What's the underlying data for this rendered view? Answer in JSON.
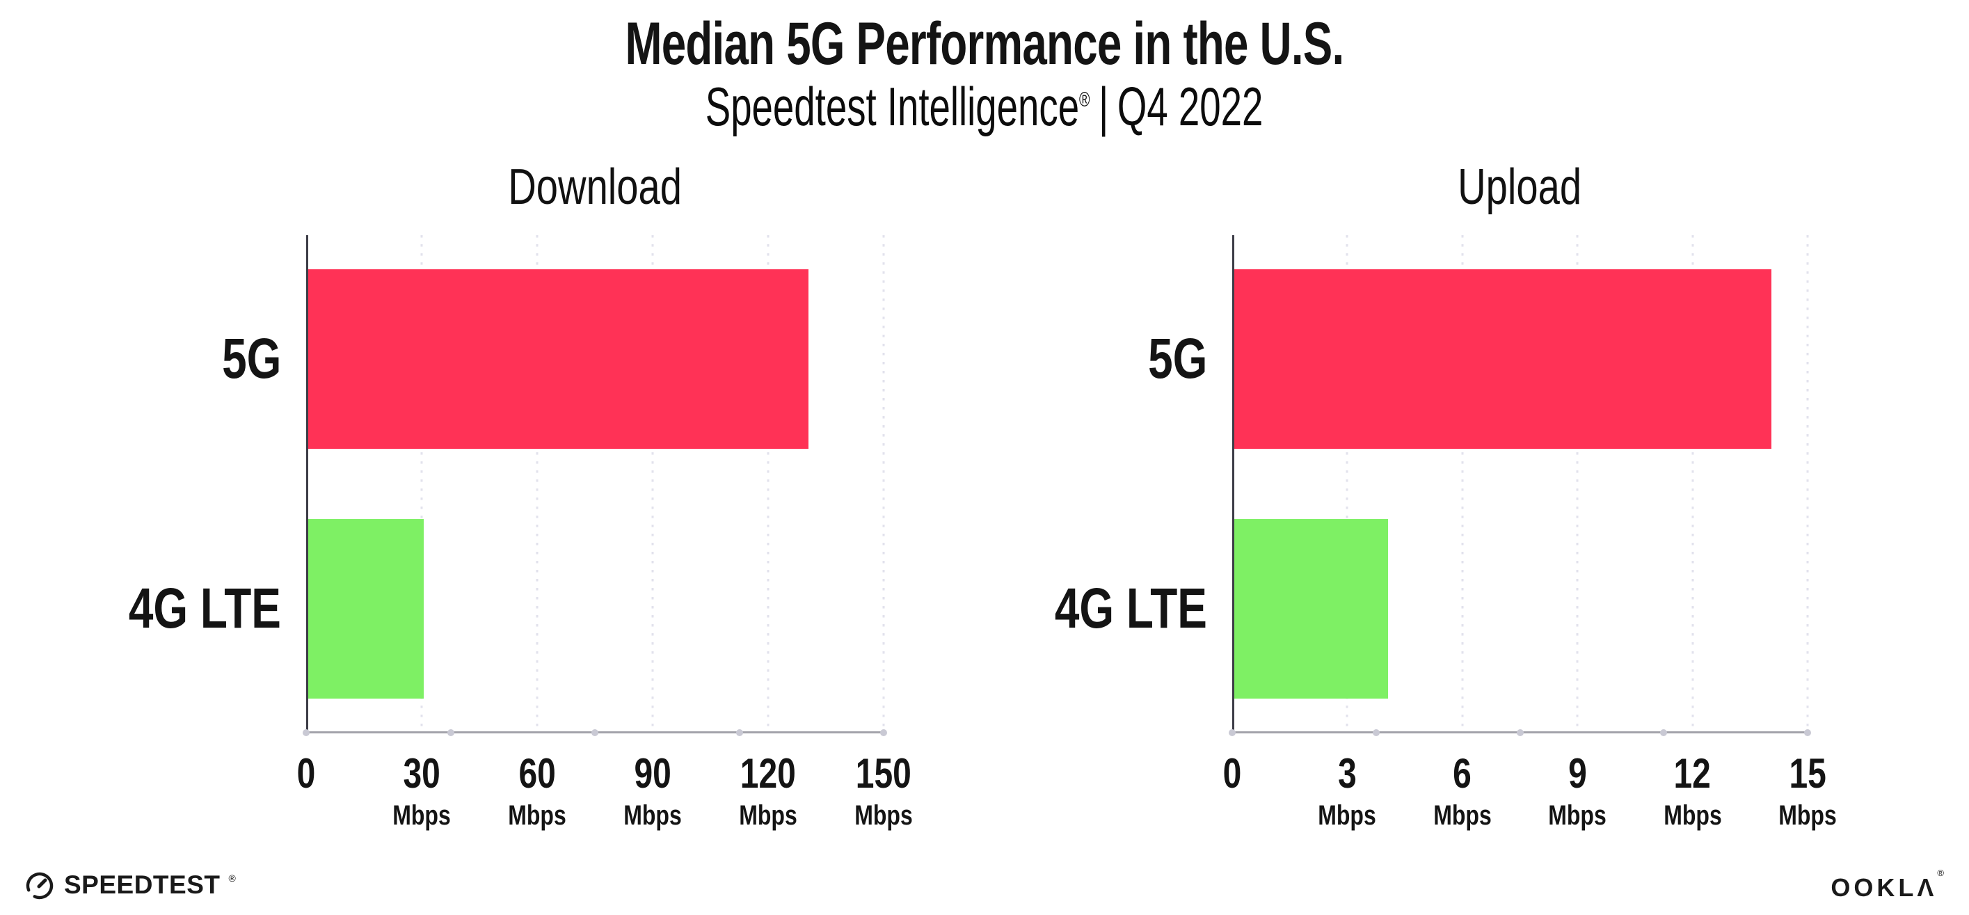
{
  "header": {
    "title": "Median 5G Performance in the U.S.",
    "subtitle_brand": "Speedtest Intelligence",
    "subtitle_reg": "®",
    "subtitle_sep": "|",
    "subtitle_period": "Q4 2022"
  },
  "colors": {
    "bar_5g": "#ff3256",
    "bar_4g_lte": "#7ef064",
    "gridline": "#e2e2ec",
    "x_axis": "#a3a3ab",
    "y_axis": "#3d3d47",
    "text": "#141414"
  },
  "chart_data": [
    {
      "type": "bar",
      "orientation": "horizontal",
      "title": "Download",
      "categories": [
        "5G",
        "4G LTE"
      ],
      "values": [
        130,
        30
      ],
      "unit": "Mbps",
      "xlim": [
        0,
        150
      ],
      "xticks": [
        0,
        30,
        60,
        90,
        120,
        150
      ],
      "grid": "vertical-dotted",
      "legend": "none"
    },
    {
      "type": "bar",
      "orientation": "horizontal",
      "title": "Upload",
      "categories": [
        "5G",
        "4G LTE"
      ],
      "values": [
        14,
        4
      ],
      "unit": "Mbps",
      "xlim": [
        0,
        15
      ],
      "xticks": [
        0,
        3,
        6,
        9,
        12,
        15
      ],
      "grid": "vertical-dotted",
      "legend": "none"
    }
  ],
  "footer": {
    "speedtest_label": "SPEEDTEST",
    "speedtest_mark": "®",
    "ookla_label": "OOKLΛ",
    "ookla_mark": "®"
  }
}
